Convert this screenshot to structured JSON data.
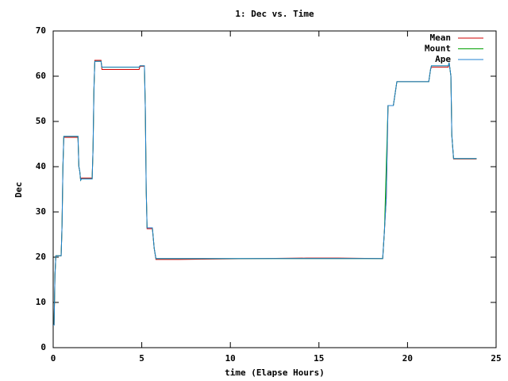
{
  "chart_data": {
    "type": "line",
    "title": "1: Dec vs. Time",
    "x_label": "time (Elapse Hours)",
    "y_label": "Dec",
    "x": [
      0,
      0.05,
      0.1,
      0.15,
      0.45,
      0.5,
      0.55,
      0.6,
      1.4,
      1.45,
      1.5,
      1.55,
      1.6,
      2.2,
      2.25,
      2.3,
      2.35,
      2.7,
      2.75,
      4.85,
      4.9,
      5.15,
      5.2,
      5.25,
      5.3,
      5.6,
      5.7,
      5.8,
      7.1,
      14.3,
      16.1,
      18.6,
      18.7,
      18.8,
      18.9,
      19.2,
      19.4,
      21.2,
      21.3,
      21.35,
      22.3,
      22.35,
      22.45,
      22.5,
      22.6,
      23.9
    ],
    "series": [
      {
        "name": "Mean",
        "color": "#d00000",
        "values": [
          5,
          5,
          16,
          20.3,
          20.3,
          27,
          40,
          46.5,
          46.5,
          40,
          39,
          37,
          37.5,
          37.5,
          44,
          57,
          63.5,
          63.5,
          61.5,
          61.5,
          62.2,
          62.2,
          53,
          35,
          26.3,
          26.3,
          22,
          19.5,
          19.5,
          19.8,
          19.8,
          19.7,
          26,
          33,
          53.5,
          53.5,
          58.8,
          58.8,
          61.5,
          62,
          62,
          63,
          60,
          47,
          41.7,
          41.7
        ]
      },
      {
        "name": "Mount",
        "color": "#00a000",
        "values": [
          5,
          5,
          16,
          20.3,
          20.3,
          27,
          40,
          46.7,
          46.7,
          40,
          39,
          37,
          37.3,
          37.3,
          44,
          57,
          63.3,
          63.3,
          62,
          62,
          62.3,
          62.3,
          53,
          35,
          26.5,
          26.5,
          22,
          19.7,
          19.7,
          19.7,
          19.7,
          19.7,
          26,
          40,
          53.5,
          53.5,
          58.8,
          58.8,
          61.5,
          62.3,
          62.3,
          63,
          60,
          47,
          41.8,
          41.8
        ]
      },
      {
        "name": "Ape",
        "color": "#2080d0",
        "values": [
          5,
          5,
          16,
          20.3,
          20.3,
          27,
          40,
          46.7,
          46.7,
          40,
          39,
          37,
          37.3,
          37.3,
          44,
          57,
          63.3,
          63.3,
          62,
          62,
          62.3,
          62.3,
          53,
          35,
          26.5,
          26.5,
          22,
          19.7,
          19.7,
          19.7,
          19.7,
          19.7,
          26,
          33,
          53.5,
          53.5,
          58.8,
          58.8,
          61.5,
          62.3,
          62.3,
          63,
          60,
          47,
          41.8,
          41.8
        ]
      }
    ],
    "xlim": [
      0,
      25
    ],
    "xticks": [
      0,
      5,
      10,
      15,
      20,
      25
    ],
    "ylim": [
      0,
      70
    ],
    "yticks": [
      0,
      10,
      20,
      30,
      40,
      50,
      60,
      70
    ],
    "legend": "top-right"
  }
}
